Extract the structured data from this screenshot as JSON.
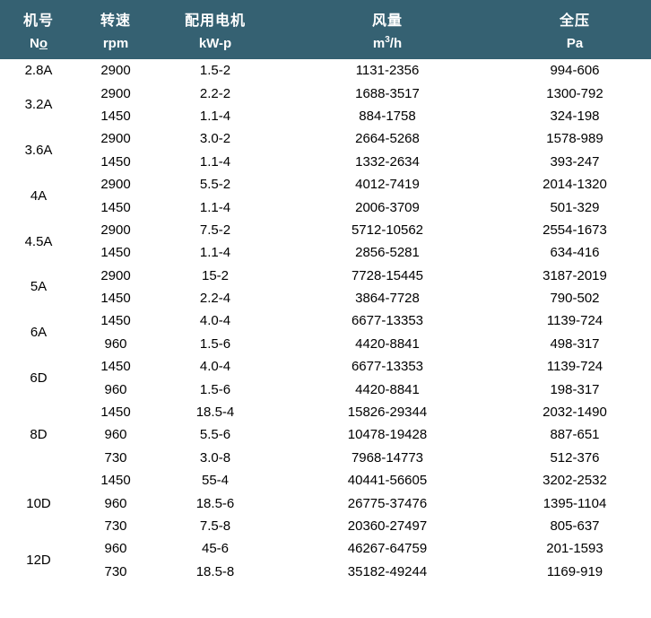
{
  "accent_color": "#356172",
  "table": {
    "header": {
      "model_zh": "机号",
      "model_unit_pre": "N",
      "model_unit_underlined": "o",
      "speed_zh": "转速",
      "speed_unit": "rpm",
      "motor_zh": "配用电机",
      "motor_unit": "kW-p",
      "airflow_zh": "风量",
      "airflow_unit_pre": "m",
      "airflow_unit_sup": "3",
      "airflow_unit_post": "/h",
      "pressure_zh": "全压",
      "pressure_unit": "Pa"
    },
    "groups": [
      {
        "model": "2.8A",
        "rows": [
          {
            "rpm": "2900",
            "motor": "1.5-2",
            "airflow": "1131-2356",
            "pressure": "994-606"
          }
        ]
      },
      {
        "model": "3.2A",
        "rows": [
          {
            "rpm": "2900",
            "motor": "2.2-2",
            "airflow": "1688-3517",
            "pressure": "1300-792"
          },
          {
            "rpm": "1450",
            "motor": "1.1-4",
            "airflow": "884-1758",
            "pressure": "324-198"
          }
        ]
      },
      {
        "model": "3.6A",
        "rows": [
          {
            "rpm": "2900",
            "motor": "3.0-2",
            "airflow": "2664-5268",
            "pressure": "1578-989"
          },
          {
            "rpm": "1450",
            "motor": "1.1-4",
            "airflow": "1332-2634",
            "pressure": "393-247"
          }
        ]
      },
      {
        "model": "4A",
        "rows": [
          {
            "rpm": "2900",
            "motor": "5.5-2",
            "airflow": "4012-7419",
            "pressure": "2014-1320"
          },
          {
            "rpm": "1450",
            "motor": "1.1-4",
            "airflow": "2006-3709",
            "pressure": "501-329"
          }
        ]
      },
      {
        "model": "4.5A",
        "rows": [
          {
            "rpm": "2900",
            "motor": "7.5-2",
            "airflow": "5712-10562",
            "pressure": "2554-1673"
          },
          {
            "rpm": "1450",
            "motor": "1.1-4",
            "airflow": "2856-5281",
            "pressure": "634-416"
          }
        ]
      },
      {
        "model": "5A",
        "rows": [
          {
            "rpm": "2900",
            "motor": "15-2",
            "airflow": "7728-15445",
            "pressure": "3187-2019"
          },
          {
            "rpm": "1450",
            "motor": "2.2-4",
            "airflow": "3864-7728",
            "pressure": "790-502"
          }
        ]
      },
      {
        "model": "6A",
        "rows": [
          {
            "rpm": "1450",
            "motor": "4.0-4",
            "airflow": "6677-13353",
            "pressure": "1139-724"
          },
          {
            "rpm": "960",
            "motor": "1.5-6",
            "airflow": "4420-8841",
            "pressure": "498-317"
          }
        ]
      },
      {
        "model": "6D",
        "rows": [
          {
            "rpm": "1450",
            "motor": "4.0-4",
            "airflow": "6677-13353",
            "pressure": "1139-724"
          },
          {
            "rpm": "960",
            "motor": "1.5-6",
            "airflow": "4420-8841",
            "pressure": "198-317"
          }
        ]
      },
      {
        "model": "8D",
        "rows": [
          {
            "rpm": "1450",
            "motor": "18.5-4",
            "airflow": "15826-29344",
            "pressure": "2032-1490"
          },
          {
            "rpm": "960",
            "motor": "5.5-6",
            "airflow": "10478-19428",
            "pressure": "887-651"
          },
          {
            "rpm": "730",
            "motor": "3.0-8",
            "airflow": "7968-14773",
            "pressure": "512-376"
          }
        ]
      },
      {
        "model": "10D",
        "rows": [
          {
            "rpm": "1450",
            "motor": "55-4",
            "airflow": "40441-56605",
            "pressure": "3202-2532"
          },
          {
            "rpm": "960",
            "motor": "18.5-6",
            "airflow": "26775-37476",
            "pressure": "1395-1104"
          },
          {
            "rpm": "730",
            "motor": "7.5-8",
            "airflow": "20360-27497",
            "pressure": "805-637"
          }
        ]
      },
      {
        "model": "12D",
        "rows": [
          {
            "rpm": "960",
            "motor": "45-6",
            "airflow": "46267-64759",
            "pressure": "201-1593"
          },
          {
            "rpm": "730",
            "motor": "18.5-8",
            "airflow": "35182-49244",
            "pressure": "1169-919"
          }
        ]
      }
    ]
  }
}
